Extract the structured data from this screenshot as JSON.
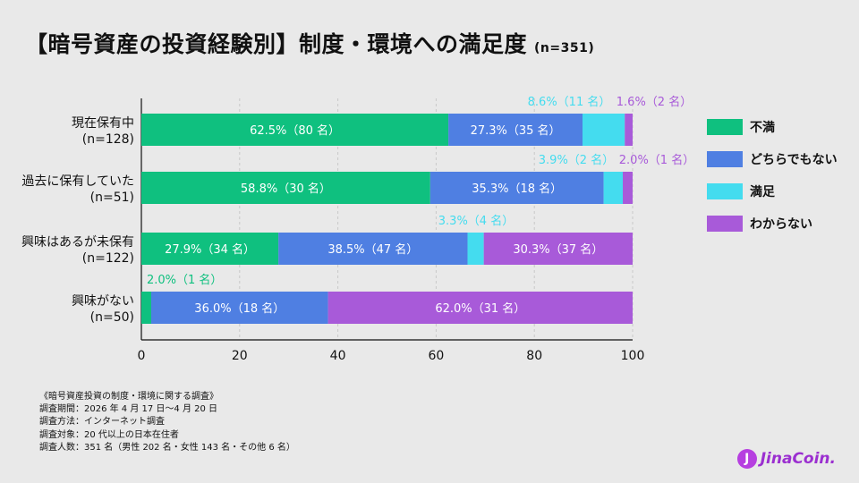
{
  "title": "【暗号資産の投資経験別】制度・環境への満足度",
  "title_n": "(n=351)",
  "colors": {
    "satisfied_not": "#0fc07f",
    "neither": "#4f7fe2",
    "satisfied": "#44dcef",
    "unknown": "#a85ad9"
  },
  "chart_data": {
    "type": "bar",
    "orientation": "horizontal",
    "stacked": true,
    "title": "【暗号資産の投資経験別】制度・環境への満足度",
    "xlim": [
      0,
      100
    ],
    "x_ticks": [
      "0",
      "20",
      "40",
      "60",
      "80",
      "100"
    ],
    "categories": [
      {
        "label": "現在保有中",
        "n": "(n=128)"
      },
      {
        "label": "過去に保有していた",
        "n": "(n=51)"
      },
      {
        "label": "興味はあるが未保有",
        "n": "(n=122)"
      },
      {
        "label": "興味がない",
        "n": "(n=50)"
      }
    ],
    "series": [
      {
        "name": "不満",
        "color": "#0fc07f",
        "values": [
          62.5,
          58.8,
          27.9,
          2.0
        ],
        "labels": [
          "62.5%（80 名）",
          "58.8%（30 名）",
          "27.9%（34 名）",
          "2.0%（1 名）"
        ],
        "label_position": [
          "inside",
          "inside",
          "inside",
          "above"
        ]
      },
      {
        "name": "どちらでもない",
        "color": "#4f7fe2",
        "values": [
          27.3,
          35.3,
          38.5,
          36.0
        ],
        "labels": [
          "27.3%（35 名）",
          "35.3%（18 名）",
          "38.5%（47 名）",
          "36.0%（18 名）"
        ],
        "label_position": [
          "inside",
          "inside",
          "inside",
          "inside"
        ]
      },
      {
        "name": "満足",
        "color": "#44dcef",
        "values": [
          8.6,
          3.9,
          3.3,
          0
        ],
        "labels": [
          "8.6%（11 名）",
          "3.9%（2 名）",
          "3.3%（4 名）",
          ""
        ],
        "label_position": [
          "above",
          "above",
          "above",
          "none"
        ]
      },
      {
        "name": "わからない",
        "color": "#a85ad9",
        "values": [
          1.6,
          2.0,
          30.3,
          62.0
        ],
        "labels": [
          "1.6%（2 名）",
          "2.0%（1 名）",
          "30.3%（37 名）",
          "62.0%（31 名）"
        ],
        "label_position": [
          "above",
          "above",
          "inside",
          "inside"
        ]
      }
    ],
    "legend": [
      "不満",
      "どちらでもない",
      "満足",
      "わからない"
    ],
    "legend_position": "right",
    "grid": true
  },
  "notes": [
    "《暗号資産投資の制度・環境に関する調査》",
    "調査期間：2026 年 4 月 17 日〜4 月 20 日",
    "調査方法：インターネット調査",
    "調査対象：20 代以上の日本在住者",
    "調査人数：351 名（男性 202 名・女性 143 名・その他 6 名）"
  ],
  "logo": {
    "mark": "J",
    "text": "JinaCoin."
  }
}
